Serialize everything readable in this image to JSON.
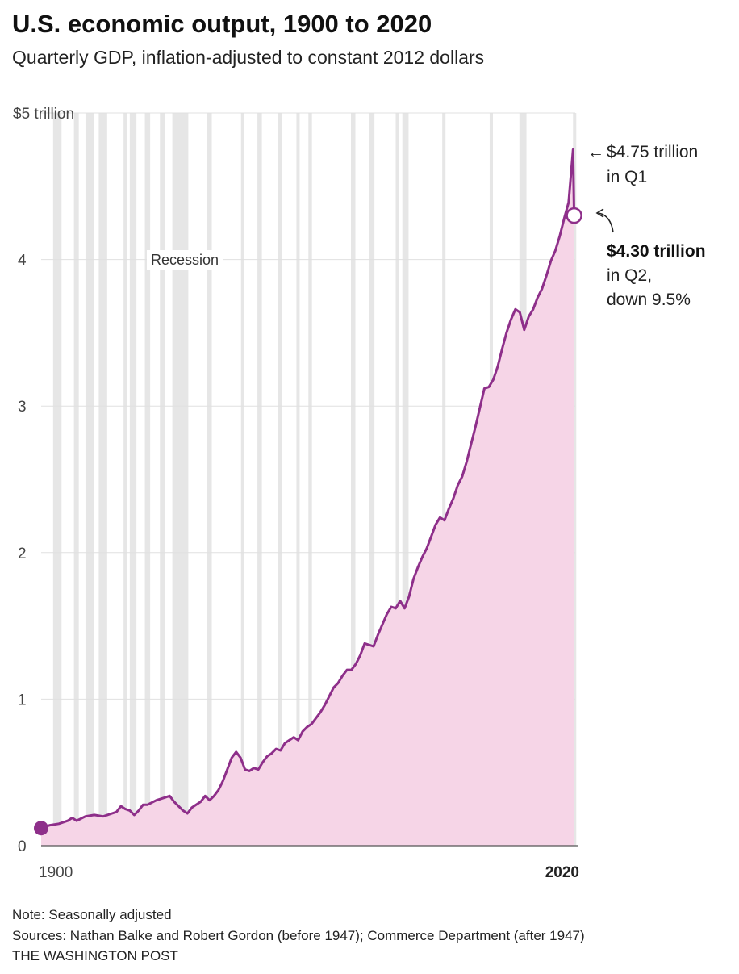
{
  "title": "U.S. economic output, 1900 to 2020",
  "subtitle": "Quarterly GDP, inflation-adjusted to constant 2012 dollars",
  "colors": {
    "line": "#8e2f8a",
    "area": "#f6d5e7",
    "recession": "#e6e6e6",
    "grid": "#e0e0e0"
  },
  "chart_data": {
    "type": "area",
    "xlim": [
      1900,
      2020.5
    ],
    "ylim": [
      0,
      5
    ],
    "y_unit": "trillion dollars (2012)",
    "y_ticks": [
      {
        "value": 0,
        "label": "0"
      },
      {
        "value": 1,
        "label": "1"
      },
      {
        "value": 2,
        "label": "2"
      },
      {
        "value": 3,
        "label": "3"
      },
      {
        "value": 4,
        "label": "4"
      },
      {
        "value": 5,
        "label": "$5 trillion"
      }
    ],
    "x_ticks": [
      {
        "value": 1900,
        "label": "1900",
        "bold": false
      },
      {
        "value": 2020,
        "label": "2020",
        "bold": true
      }
    ],
    "recession_label": "Recession",
    "recessions": [
      [
        1902.7,
        1904.6
      ],
      [
        1907.4,
        1908.5
      ],
      [
        1910.0,
        1912.0
      ],
      [
        1913.0,
        1914.9
      ],
      [
        1918.6,
        1919.2
      ],
      [
        1920.0,
        1921.5
      ],
      [
        1923.4,
        1924.6
      ],
      [
        1926.8,
        1927.9
      ],
      [
        1929.6,
        1933.2
      ],
      [
        1937.4,
        1938.5
      ],
      [
        1945.1,
        1945.8
      ],
      [
        1948.8,
        1949.8
      ],
      [
        1953.5,
        1954.4
      ],
      [
        1957.6,
        1958.3
      ],
      [
        1960.3,
        1961.1
      ],
      [
        1969.9,
        1970.9
      ],
      [
        1973.9,
        1975.2
      ],
      [
        1980.0,
        1980.5
      ],
      [
        1981.5,
        1982.9
      ],
      [
        1990.5,
        1991.2
      ],
      [
        2001.2,
        2001.9
      ],
      [
        2007.9,
        2009.5
      ],
      [
        2020.0,
        2020.5
      ]
    ],
    "series": [
      {
        "values": [
          [
            1900,
            0.12
          ],
          [
            1902,
            0.14
          ],
          [
            1904,
            0.15
          ],
          [
            1906,
            0.17
          ],
          [
            1907,
            0.19
          ],
          [
            1908,
            0.17
          ],
          [
            1910,
            0.2
          ],
          [
            1912,
            0.21
          ],
          [
            1914,
            0.2
          ],
          [
            1916,
            0.22
          ],
          [
            1917,
            0.23
          ],
          [
            1918,
            0.27
          ],
          [
            1919,
            0.25
          ],
          [
            1920,
            0.24
          ],
          [
            1921,
            0.21
          ],
          [
            1922,
            0.24
          ],
          [
            1923,
            0.28
          ],
          [
            1924,
            0.28
          ],
          [
            1926,
            0.31
          ],
          [
            1927,
            0.32
          ],
          [
            1929,
            0.34
          ],
          [
            1930,
            0.3
          ],
          [
            1932,
            0.24
          ],
          [
            1933,
            0.22
          ],
          [
            1934,
            0.26
          ],
          [
            1936,
            0.3
          ],
          [
            1937,
            0.34
          ],
          [
            1938,
            0.31
          ],
          [
            1939,
            0.34
          ],
          [
            1940,
            0.38
          ],
          [
            1941,
            0.44
          ],
          [
            1942,
            0.52
          ],
          [
            1943,
            0.6
          ],
          [
            1944,
            0.64
          ],
          [
            1945,
            0.6
          ],
          [
            1946,
            0.52
          ],
          [
            1947,
            0.51
          ],
          [
            1948,
            0.53
          ],
          [
            1949,
            0.52
          ],
          [
            1950,
            0.57
          ],
          [
            1951,
            0.61
          ],
          [
            1952,
            0.63
          ],
          [
            1953,
            0.66
          ],
          [
            1954,
            0.65
          ],
          [
            1955,
            0.7
          ],
          [
            1956,
            0.72
          ],
          [
            1957,
            0.74
          ],
          [
            1958,
            0.72
          ],
          [
            1959,
            0.78
          ],
          [
            1960,
            0.81
          ],
          [
            1961,
            0.83
          ],
          [
            1962,
            0.87
          ],
          [
            1963,
            0.91
          ],
          [
            1964,
            0.96
          ],
          [
            1965,
            1.02
          ],
          [
            1966,
            1.08
          ],
          [
            1967,
            1.11
          ],
          [
            1968,
            1.16
          ],
          [
            1969,
            1.2
          ],
          [
            1970,
            1.2
          ],
          [
            1971,
            1.24
          ],
          [
            1972,
            1.3
          ],
          [
            1973,
            1.38
          ],
          [
            1974,
            1.37
          ],
          [
            1975,
            1.36
          ],
          [
            1976,
            1.44
          ],
          [
            1977,
            1.51
          ],
          [
            1978,
            1.58
          ],
          [
            1979,
            1.63
          ],
          [
            1980,
            1.62
          ],
          [
            1981,
            1.67
          ],
          [
            1982,
            1.62
          ],
          [
            1983,
            1.7
          ],
          [
            1984,
            1.82
          ],
          [
            1985,
            1.9
          ],
          [
            1986,
            1.97
          ],
          [
            1987,
            2.03
          ],
          [
            1988,
            2.11
          ],
          [
            1989,
            2.19
          ],
          [
            1990,
            2.24
          ],
          [
            1991,
            2.22
          ],
          [
            1992,
            2.3
          ],
          [
            1993,
            2.37
          ],
          [
            1994,
            2.46
          ],
          [
            1995,
            2.52
          ],
          [
            1996,
            2.62
          ],
          [
            1997,
            2.74
          ],
          [
            1998,
            2.86
          ],
          [
            1999,
            2.99
          ],
          [
            2000,
            3.12
          ],
          [
            2001,
            3.13
          ],
          [
            2002,
            3.18
          ],
          [
            2003,
            3.27
          ],
          [
            2004,
            3.39
          ],
          [
            2005,
            3.5
          ],
          [
            2006,
            3.59
          ],
          [
            2007,
            3.66
          ],
          [
            2008,
            3.64
          ],
          [
            2009,
            3.52
          ],
          [
            2010,
            3.61
          ],
          [
            2011,
            3.66
          ],
          [
            2012,
            3.74
          ],
          [
            2013,
            3.8
          ],
          [
            2014,
            3.89
          ],
          [
            2015,
            3.99
          ],
          [
            2016,
            4.06
          ],
          [
            2017,
            4.16
          ],
          [
            2018,
            4.28
          ],
          [
            2019,
            4.39
          ],
          [
            2020.0,
            4.75
          ],
          [
            2020.25,
            4.3
          ]
        ]
      }
    ],
    "annotations": {
      "q1_value": "$4.75 trillion",
      "q1_period": "in Q1",
      "q2_value": "$4.30 trillion",
      "q2_period": "in Q2,",
      "q2_change": "down 9.5%"
    }
  },
  "footer": {
    "note": "Note: Seasonally adjusted",
    "sources": "Sources: Nathan Balke and Robert Gordon (before 1947); Commerce Department (after 1947)",
    "publisher": "THE WASHINGTON POST"
  }
}
